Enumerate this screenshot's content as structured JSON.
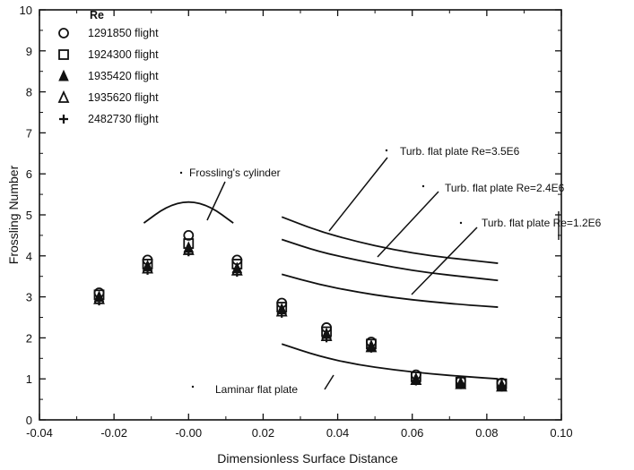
{
  "chart_data": {
    "type": "scatter",
    "title": "",
    "xlabel": "Dimensionless Surface Distance",
    "ylabel": "Frossling Number",
    "xlim": [
      -0.04,
      0.1
    ],
    "ylim": [
      0,
      10
    ],
    "x_ticks": [
      "-0.04",
      "-0.02",
      "-0.00",
      "0.02",
      "0.04",
      "0.06",
      "0.08",
      "0.10"
    ],
    "y_ticks": [
      "0",
      "1",
      "2",
      "3",
      "4",
      "5",
      "6",
      "7",
      "8",
      "9",
      "10"
    ],
    "grid": false,
    "legend": {
      "title": "Re",
      "placement": "top-left",
      "entries": [
        {
          "marker": "circle-open",
          "label": "1291850 flight"
        },
        {
          "marker": "square-open",
          "label": "1924300 flight"
        },
        {
          "marker": "triangle-filled",
          "label": "1935420 flight"
        },
        {
          "marker": "triangle-open",
          "label": "1935620 flight"
        },
        {
          "marker": "plus",
          "label": "2482730 flight"
        }
      ]
    },
    "series": [
      {
        "name": "1291850 flight",
        "marker": "circle-open",
        "x": [
          -0.024,
          -0.011,
          0.0,
          0.013,
          0.025,
          0.037,
          0.049,
          0.061,
          0.073,
          0.084
        ],
        "y": [
          3.1,
          3.9,
          4.5,
          3.9,
          2.85,
          2.25,
          1.9,
          1.1,
          0.95,
          0.9
        ]
      },
      {
        "name": "1924300 flight",
        "marker": "square-open",
        "x": [
          -0.024,
          -0.011,
          0.0,
          0.013,
          0.025,
          0.037,
          0.049,
          0.061,
          0.073,
          0.084
        ],
        "y": [
          3.05,
          3.8,
          4.3,
          3.8,
          2.75,
          2.15,
          1.85,
          1.05,
          0.92,
          0.88
        ]
      },
      {
        "name": "1935420 flight",
        "marker": "triangle-filled",
        "x": [
          -0.024,
          -0.011,
          0.0,
          0.013,
          0.025,
          0.037,
          0.049,
          0.061,
          0.073,
          0.084
        ],
        "y": [
          3.0,
          3.75,
          4.2,
          3.7,
          2.7,
          2.1,
          1.8,
          1.0,
          0.9,
          0.85
        ]
      },
      {
        "name": "1935620 flight",
        "marker": "triangle-open",
        "x": [
          -0.024,
          -0.011,
          0.0,
          0.013,
          0.025,
          0.037,
          0.049,
          0.061,
          0.073,
          0.084
        ],
        "y": [
          2.95,
          3.7,
          4.15,
          3.65,
          2.65,
          2.05,
          1.78,
          0.98,
          0.88,
          0.82
        ]
      },
      {
        "name": "2482730 flight",
        "marker": "plus",
        "x": [
          -0.024,
          -0.011,
          0.0,
          0.013,
          0.025,
          0.037,
          0.049,
          0.061,
          0.073,
          0.084
        ],
        "y": [
          2.9,
          3.65,
          4.1,
          3.6,
          2.6,
          2.0,
          1.75,
          0.95,
          0.86,
          0.8
        ]
      }
    ],
    "curves": [
      {
        "label": "Frossling's cylinder",
        "x": [
          -0.012,
          -0.006,
          0.0,
          0.006,
          0.012
        ],
        "y": [
          4.8,
          5.2,
          5.35,
          5.2,
          4.8
        ]
      },
      {
        "label": "Turb. flat plate Re=3.5E6",
        "x": [
          0.025,
          0.035,
          0.045,
          0.055,
          0.065,
          0.075,
          0.083
        ],
        "y": [
          4.95,
          4.6,
          4.35,
          4.15,
          4.0,
          3.9,
          3.82
        ]
      },
      {
        "label": "Turb. flat plate Re=2.4E6",
        "x": [
          0.025,
          0.035,
          0.045,
          0.055,
          0.065,
          0.075,
          0.083
        ],
        "y": [
          4.4,
          4.1,
          3.9,
          3.72,
          3.58,
          3.48,
          3.4
        ]
      },
      {
        "label": "Turb. flat plate Re=1.2E6",
        "x": [
          0.025,
          0.035,
          0.045,
          0.055,
          0.065,
          0.075,
          0.083
        ],
        "y": [
          3.55,
          3.3,
          3.12,
          2.98,
          2.88,
          2.8,
          2.75
        ]
      },
      {
        "label": "Laminar flat plate",
        "x": [
          0.025,
          0.035,
          0.045,
          0.055,
          0.065,
          0.075,
          0.083
        ],
        "y": [
          1.85,
          1.55,
          1.35,
          1.22,
          1.12,
          1.05,
          1.0
        ]
      }
    ]
  }
}
